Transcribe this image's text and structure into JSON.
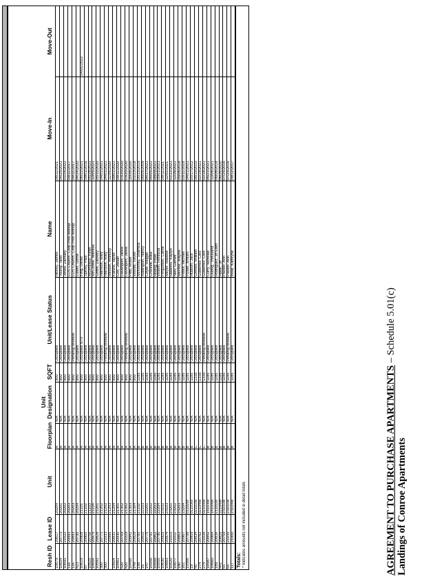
{
  "document": {
    "agreement_title": "AGREEMENT TO PURCHASE APARTMENTS",
    "schedule": " – Schedule 5.01(c)",
    "subtitle": "Landings of Conroe Apartments"
  },
  "table": {
    "headers": [
      "Resh ID",
      "Lease ID",
      "Unit",
      "Floorplan",
      "Unit Designation",
      "SQFT",
      "Unit/Lease Status",
      "Name",
      "Move-In",
      "Move-Out"
    ],
    "rows": [
      [
        "10679",
        "20617",
        "20204",
        "A",
        "N/A",
        "900",
        "Occupied",
        "Hickey, James",
        "08/11/2021",
        ""
      ],
      [
        "10654",
        "20773",
        "20201",
        "A",
        "N/A",
        "900",
        "Occupied",
        "Young, Tarel",
        "04/25/2021",
        ""
      ],
      [
        "10691",
        "21022",
        "20202",
        "A",
        "N/A",
        "900",
        "Occupied",
        "Jones, Zachary",
        "01/24/2022",
        ""
      ],
      [
        "116",
        "20893",
        "20203",
        "A",
        "N/A",
        "900",
        "Occupied",
        "LDS Church, Corp Pres Bishop",
        "09/11/2017",
        ""
      ],
      [
        "116",
        "20893",
        "20203",
        "A",
        "N/A",
        "900",
        "Pending renewal",
        "LDS Church, Corp Pres Bishop",
        "09/11/2017",
        ""
      ],
      [
        "423",
        "20795",
        "20204",
        "A",
        "N/A",
        "900",
        "Occupied",
        "Luster, Derrik",
        "04/14/2020",
        ""
      ],
      [
        "10619",
        "20908",
        "21101",
        "A",
        "N/A",
        "900",
        "Occupied NTV",
        "King, Derek",
        "06/22/2021",
        "04/01/2022"
      ],
      [
        "87",
        "20805",
        "21102",
        "A",
        "N/A",
        "900",
        "Occupied",
        "Spivey, Paul",
        "09/01/2016",
        ""
      ],
      [
        "10525",
        "20756",
        "21103",
        "A",
        "N/A",
        "900",
        "Occupied",
        "Arceneaux, Keith",
        "05/28/2021",
        ""
      ],
      [
        "10654",
        "20975",
        "21104",
        "A",
        "N/A",
        "900",
        "Occupied",
        "McCorkle, Marissa",
        "12/05/2021",
        ""
      ],
      [
        "10591",
        "20828",
        "21201",
        "A",
        "N/A",
        "900",
        "Occupied",
        "Griffin, Zackery",
        "05/10/2020",
        ""
      ],
      [
        "300",
        "20771",
        "21202",
        "A",
        "N/A",
        "900",
        "Occupied",
        "Hairston, Mary",
        "04/01/2021",
        ""
      ],
      [
        "300",
        "21033",
        "21202",
        "A",
        "N/A",
        "900",
        "Pending renewal",
        "Hairston, Mary",
        "04/01/2021",
        ""
      ],
      [
        "",
        "20966",
        "21203",
        "A",
        "N/A",
        "900",
        "Occupied",
        "Messer, Anthony",
        "11/20/2020",
        ""
      ],
      [
        "10604",
        "20831",
        "21204",
        "A",
        "N/A",
        "900",
        "Occupied",
        "Kanzis, Taylor",
        "09/01/2021",
        ""
      ],
      [
        "10461",
        "20930",
        "21301",
        "A",
        "N/A",
        "900",
        "Occupied",
        "Cox, Josiah",
        "09/11/2020",
        ""
      ],
      [
        "420",
        "20769",
        "21302",
        "A",
        "N/A",
        "900",
        "Occupied",
        "Davenport, Jared",
        "03/20/2020",
        ""
      ],
      [
        "420",
        "21029",
        "21302",
        "A",
        "N/A",
        "900",
        "Pending renewal",
        "Davenport, Jared",
        "03/20/2020",
        ""
      ],
      [
        "10495",
        "20941",
        "21303",
        "A",
        "N/A",
        "900",
        "Occupied",
        "Pitts, Andre",
        "10/26/2020",
        ""
      ],
      [
        "149",
        "20829",
        "21304",
        "A",
        "N/A",
        "900",
        "Occupied",
        "Woods, Xavier",
        "01/23/2018",
        ""
      ],
      [
        "198",
        "20760",
        "21102",
        "B",
        "N/A",
        "1185",
        "Occupied",
        "McKinney, Shamica",
        "05/15/2019",
        ""
      ],
      [
        "16",
        "20810",
        "22103",
        "B",
        "N/A",
        "1185",
        "Occupied",
        "Addington, Nancy",
        "06/05/2009",
        ""
      ],
      [
        "147",
        "20775",
        "22201",
        "B",
        "N/A",
        "1185",
        "Occupied",
        "Coyle, Reggie",
        "04/17/2021",
        ""
      ],
      [
        "10556",
        "20791",
        "22202",
        "B",
        "N/A",
        "1185",
        "Occupied",
        "Crockett, Alisa",
        "04/05/2021",
        ""
      ],
      [
        "10599",
        "20862",
        "22203",
        "B",
        "N/A",
        "1185",
        "Occupied",
        "Hoang, Peter",
        "08/09/2021",
        ""
      ],
      [
        "10555",
        "20790",
        "22204",
        "B",
        "N/A",
        "1185",
        "Occupied",
        "Wilson, Reniscia",
        "05/01/2021",
        ""
      ],
      [
        "10630",
        "20925",
        "23102",
        "B",
        "N/A",
        "1185",
        "Occupied",
        "Fergurson, Carrie",
        "09/11/2021",
        ""
      ],
      [
        "10663",
        "20974",
        "23103",
        "B",
        "N/A",
        "1185",
        "Occupied",
        "Meyer, Isabelle",
        "11/01/2021",
        ""
      ],
      [
        "10520",
        "21015",
        "23201",
        "B",
        "N/A",
        "1185",
        "Occupied",
        "Hawkins, Kaylyn",
        "01/22/2021",
        ""
      ],
      [
        "10677",
        "21011",
        "23202",
        "B",
        "N/A",
        "1185",
        "Occupied",
        "Neill, Garrett",
        "12/26/2021",
        ""
      ],
      [
        "180",
        "20863",
        "23203",
        "B",
        "N/A",
        "1185",
        "Occupied",
        "McPike, Wayne",
        "05/08/2018",
        ""
      ],
      [
        "161",
        "20967",
        "23204",
        "B",
        "N/A",
        "1185",
        "Occupied",
        "Petelt, Michael",
        "03/11/2018",
        ""
      ],
      [
        "10566",
        "20799",
        "01102W",
        "B",
        "N/A",
        "1185",
        "Occupied",
        "Pylate, Brittani",
        "04/01/2021",
        ""
      ],
      [
        "19",
        "20809",
        "01103W",
        "B",
        "N/A",
        "1185",
        "Occupied",
        "Hudson, Jack",
        "05/17/2012",
        ""
      ],
      [
        "45",
        "20834",
        "02101W",
        "C",
        "N/A",
        "1335",
        "Occupied",
        "Grimes, William",
        "08/10/2015",
        ""
      ],
      [
        "274",
        "20762",
        "02104W",
        "C",
        "N/A",
        "1335",
        "Occupied",
        "Gutierrez, Ceci",
        "02/18/2021",
        ""
      ],
      [
        "274",
        "21026",
        "02104W",
        "C",
        "N/A",
        "1335",
        "Pending renewal",
        "Gutierrez, Ceci",
        "02/18/2021",
        ""
      ],
      [
        "10587",
        "20842",
        "14103W",
        "B",
        "N/A",
        "1185",
        "Occupied",
        "Curry, Nicholas",
        "05/21/2021",
        ""
      ],
      [
        "10660",
        "20964",
        "14104W",
        "B",
        "N/A",
        "1185",
        "Occupied",
        "Duong, Thousand",
        "12/08/2021",
        ""
      ],
      [
        "189",
        "20834",
        "21101W",
        "B",
        "N/A",
        "1185",
        "Occupied",
        "Rodriguez, Jo Ellen",
        "06/08/2018",
        ""
      ],
      [
        "441",
        "20825",
        "22104W",
        "B",
        "N/A",
        "1185",
        "Occupied",
        "Hawk, Jo",
        "06/26/2020",
        ""
      ],
      [
        "65",
        "20759",
        "23101W",
        "B",
        "N/A",
        "1185",
        "Occupied",
        "Paxton, Ann",
        "07/25/2016",
        ""
      ],
      [
        "65",
        "21035",
        "23101W",
        "B",
        "N/A",
        "1185",
        "Pending renewal",
        "Paxton, Ann",
        "07/25/2016",
        ""
      ],
      [
        "117",
        "21000",
        "23104W",
        "B",
        "N/A",
        "1185",
        "Occupied",
        "Beall, Kathryne",
        "09/12/2017",
        ""
      ]
    ],
    "totals_label": "Totals:",
    "footnote": "* Indicates amounts not included in detail totals"
  }
}
